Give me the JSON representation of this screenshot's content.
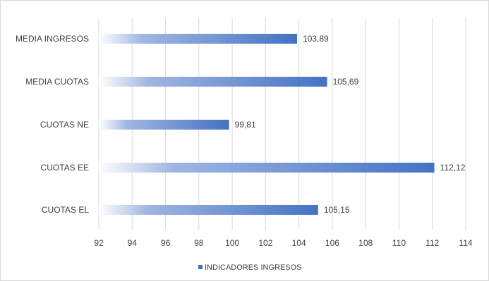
{
  "chart_data": {
    "type": "bar",
    "orientation": "horizontal",
    "categories": [
      "MEDIA INGRESOS",
      "MEDIA CUOTAS",
      "CUOTAS NE",
      "CUOTAS EE",
      "CUOTAS EL"
    ],
    "series": [
      {
        "name": "INDICADORES INGRESOS",
        "values": [
          103.89,
          105.69,
          99.81,
          112.12,
          105.15
        ],
        "labels": [
          "103,89",
          "105,69",
          "99,81",
          "112,12",
          "105,15"
        ]
      }
    ],
    "xlim": [
      92,
      114
    ],
    "xticks": [
      92,
      94,
      96,
      98,
      100,
      102,
      104,
      106,
      108,
      110,
      112,
      114
    ],
    "xtick_labels": [
      "92",
      "94",
      "96",
      "98",
      "100",
      "102",
      "104",
      "106",
      "108",
      "110",
      "112",
      "114"
    ],
    "grid": true,
    "legend_position": "bottom",
    "colors": {
      "bar": "#4472c4",
      "bar_fade": "#ffffff",
      "gridline": "#d9d9d9",
      "text": "#404040"
    }
  }
}
